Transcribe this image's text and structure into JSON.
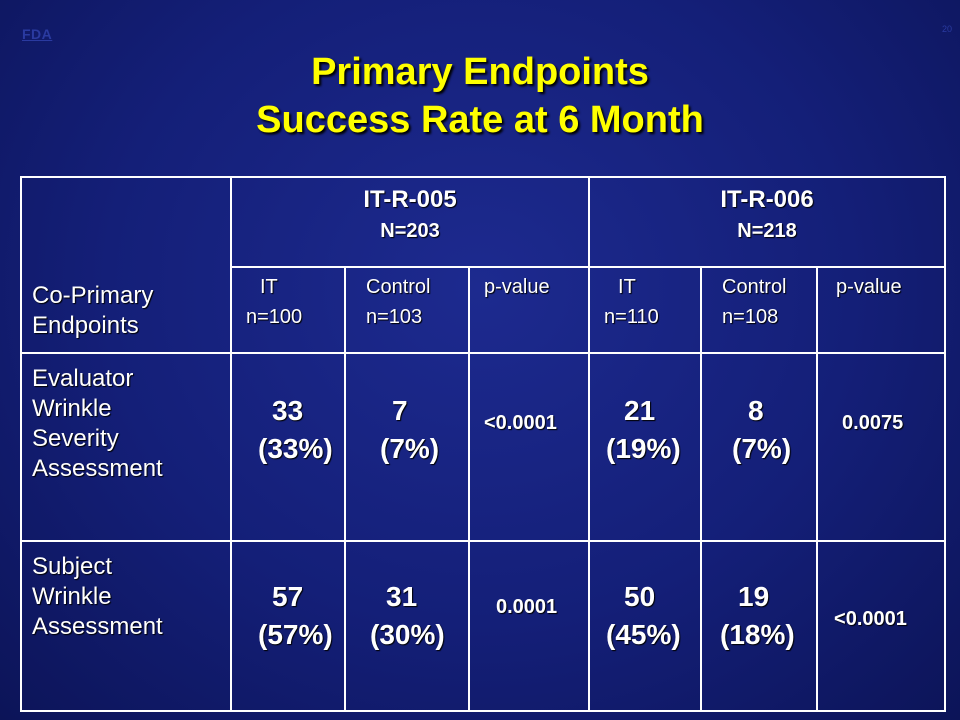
{
  "header": {
    "logo_text": "FDA",
    "slide_number": "20",
    "title_line1": "Primary Endpoints",
    "title_line2": "Success Rate at 6 Month"
  },
  "table": {
    "corner_label_line1": "Co-Primary",
    "corner_label_line2": "Endpoints",
    "studies": [
      {
        "name": "IT-R-005",
        "n": "N=203",
        "columns": [
          {
            "label": "IT",
            "n": "n=100"
          },
          {
            "label": "Control",
            "n": "n=103"
          },
          {
            "label": "p-value",
            "n": ""
          }
        ]
      },
      {
        "name": "IT-R-006",
        "n": "N=218",
        "columns": [
          {
            "label": "IT",
            "n": "n=110"
          },
          {
            "label": "Control",
            "n": "n=108"
          },
          {
            "label": "p-value",
            "n": ""
          }
        ]
      }
    ],
    "rows": [
      {
        "label_lines": [
          "Evaluator",
          "Wrinkle",
          "Severity",
          "Assessment"
        ],
        "cells": [
          {
            "count": "33",
            "pct": "(33%)"
          },
          {
            "count": "7",
            "pct": "(7%)"
          },
          {
            "p": "<0.0001"
          },
          {
            "count": "21",
            "pct": "(19%)"
          },
          {
            "count": "8",
            "pct": "(7%)"
          },
          {
            "p": "0.0075"
          }
        ]
      },
      {
        "label_lines": [
          "Subject",
          "Wrinkle",
          "Assessment"
        ],
        "cells": [
          {
            "count": "57",
            "pct": "(57%)"
          },
          {
            "count": "31",
            "pct": "(30%)"
          },
          {
            "p": "0.0001"
          },
          {
            "count": "50",
            "pct": "(45%)"
          },
          {
            "count": "19",
            "pct": "(18%)"
          },
          {
            "p": "<0.0001"
          }
        ]
      }
    ]
  },
  "colors": {
    "background": "#141f78",
    "title": "#ffff00",
    "text": "#ffffff",
    "grid_lines": "#ffffff"
  }
}
